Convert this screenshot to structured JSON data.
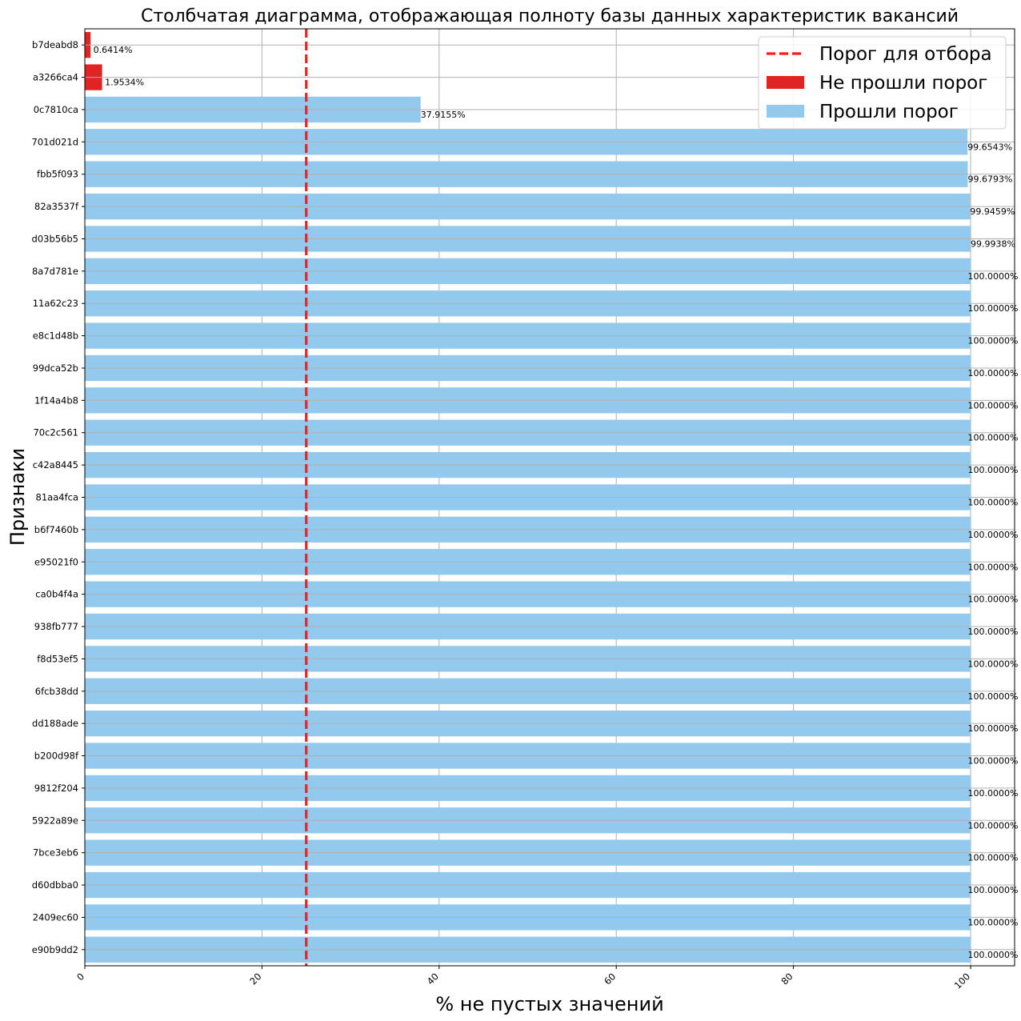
{
  "chart_data": {
    "type": "bar",
    "orientation": "horizontal",
    "title": "Столбчатая диаграмма, отображающая полноту базы данных характеристик вакансий",
    "xlabel": "% не пустых значений",
    "ylabel": "Признаки",
    "xlim": [
      0,
      100
    ],
    "x_ticks": [
      0,
      20,
      40,
      60,
      80,
      100
    ],
    "grid": true,
    "legend_position": "top-right",
    "threshold": 25,
    "colors": {
      "failed": "#e02424",
      "passed": "#93c9ec",
      "threshold": "#ff1a1a",
      "grid": "#b0b0b0"
    },
    "legend": [
      {
        "label": "Порог для отбора",
        "kind": "line",
        "color": "#ff1a1a"
      },
      {
        "label": "Не прошли порог",
        "kind": "patch",
        "color": "#e02424"
      },
      {
        "label": "Прошли порог",
        "kind": "patch",
        "color": "#93c9ec"
      }
    ],
    "categories": [
      "b7deabd8",
      "a3266ca4",
      "0c7810ca",
      "701d021d",
      "fbb5f093",
      "82a3537f",
      "d03b56b5",
      "8a7d781e",
      "11a62c23",
      "e8c1d48b",
      "99dca52b",
      "1f14a4b8",
      "70c2c561",
      "c42a8445",
      "81aa4fca",
      "b6f7460b",
      "e95021f0",
      "ca0b4f4a",
      "938fb777",
      "f8d53ef5",
      "6fcb38dd",
      "dd188ade",
      "b200d98f",
      "9812f204",
      "5922a89e",
      "7bce3eb6",
      "d60dbba0",
      "2409ec60",
      "e90b9dd2"
    ],
    "values": [
      0.6414,
      1.9534,
      37.9155,
      99.6543,
      99.6793,
      99.9459,
      99.9938,
      100,
      100,
      100,
      100,
      100,
      100,
      100,
      100,
      100,
      100,
      100,
      100,
      100,
      100,
      100,
      100,
      100,
      100,
      100,
      100,
      100,
      100
    ],
    "value_labels": [
      "0.6414%",
      "1.9534%",
      "37.9155%",
      "99.6543%",
      "99.6793%",
      "99.9459%",
      "99.9938%",
      "100.0000%",
      "100.0000%",
      "100.0000%",
      "100.0000%",
      "100.0000%",
      "100.0000%",
      "100.0000%",
      "100.0000%",
      "100.0000%",
      "100.0000%",
      "100.0000%",
      "100.0000%",
      "100.0000%",
      "100.0000%",
      "100.0000%",
      "100.0000%",
      "100.0000%",
      "100.0000%",
      "100.0000%",
      "100.0000%",
      "100.0000%",
      "100.0000%"
    ]
  }
}
